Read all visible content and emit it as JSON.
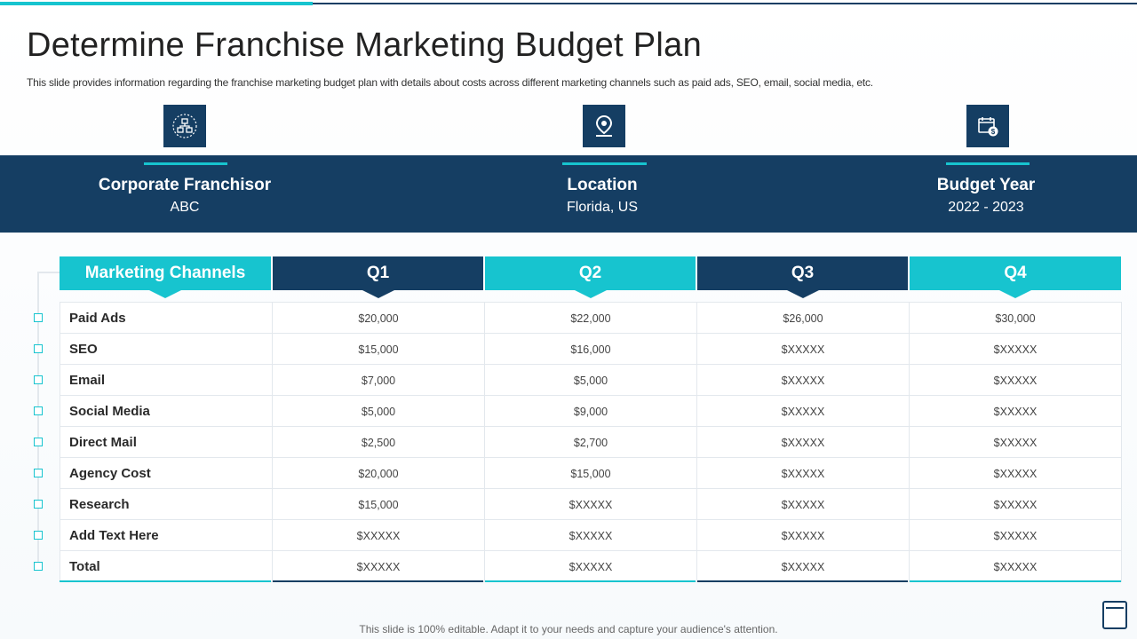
{
  "title": "Determine Franchise Marketing Budget Plan",
  "subtitle": "This slide provides information regarding the franchise marketing budget plan with details about costs across different marketing channels such as paid ads, SEO, email, social media, etc.",
  "info": [
    {
      "label": "Corporate Franchisor",
      "value": "ABC",
      "icon": "network-org-icon"
    },
    {
      "label": "Location",
      "value": "Florida, US",
      "icon": "location-pin-icon"
    },
    {
      "label": "Budget Year",
      "value": "2022 - 2023",
      "icon": "calendar-dollar-icon"
    }
  ],
  "table": {
    "headers": [
      "Marketing Channels",
      "Q1",
      "Q2",
      "Q3",
      "Q4"
    ],
    "rows": [
      [
        "Paid Ads",
        "$20,000",
        "$22,000",
        "$26,000",
        "$30,000"
      ],
      [
        "SEO",
        "$15,000",
        "$16,000",
        "$XXXXX",
        "$XXXXX"
      ],
      [
        "Email",
        "$7,000",
        "$5,000",
        "$XXXXX",
        "$XXXXX"
      ],
      [
        "Social Media",
        "$5,000",
        "$9,000",
        "$XXXXX",
        "$XXXXX"
      ],
      [
        "Direct Mail",
        "$2,500",
        "$2,700",
        "$XXXXX",
        "$XXXXX"
      ],
      [
        "Agency Cost",
        "$20,000",
        "$15,000",
        "$XXXXX",
        "$XXXXX"
      ],
      [
        "Research",
        "$15,000",
        "$XXXXX",
        "$XXXXX",
        "$XXXXX"
      ],
      [
        "Add Text Here",
        "$XXXXX",
        "$XXXXX",
        "$XXXXX",
        "$XXXXX"
      ],
      [
        "Total",
        "$XXXXX",
        "$XXXXX",
        "$XXXXX",
        "$XXXXX"
      ]
    ]
  },
  "footer": "This slide is 100% editable. Adapt it to your needs and capture your audience's attention.",
  "colors": {
    "navy": "#153e63",
    "teal": "#17c4cf"
  }
}
